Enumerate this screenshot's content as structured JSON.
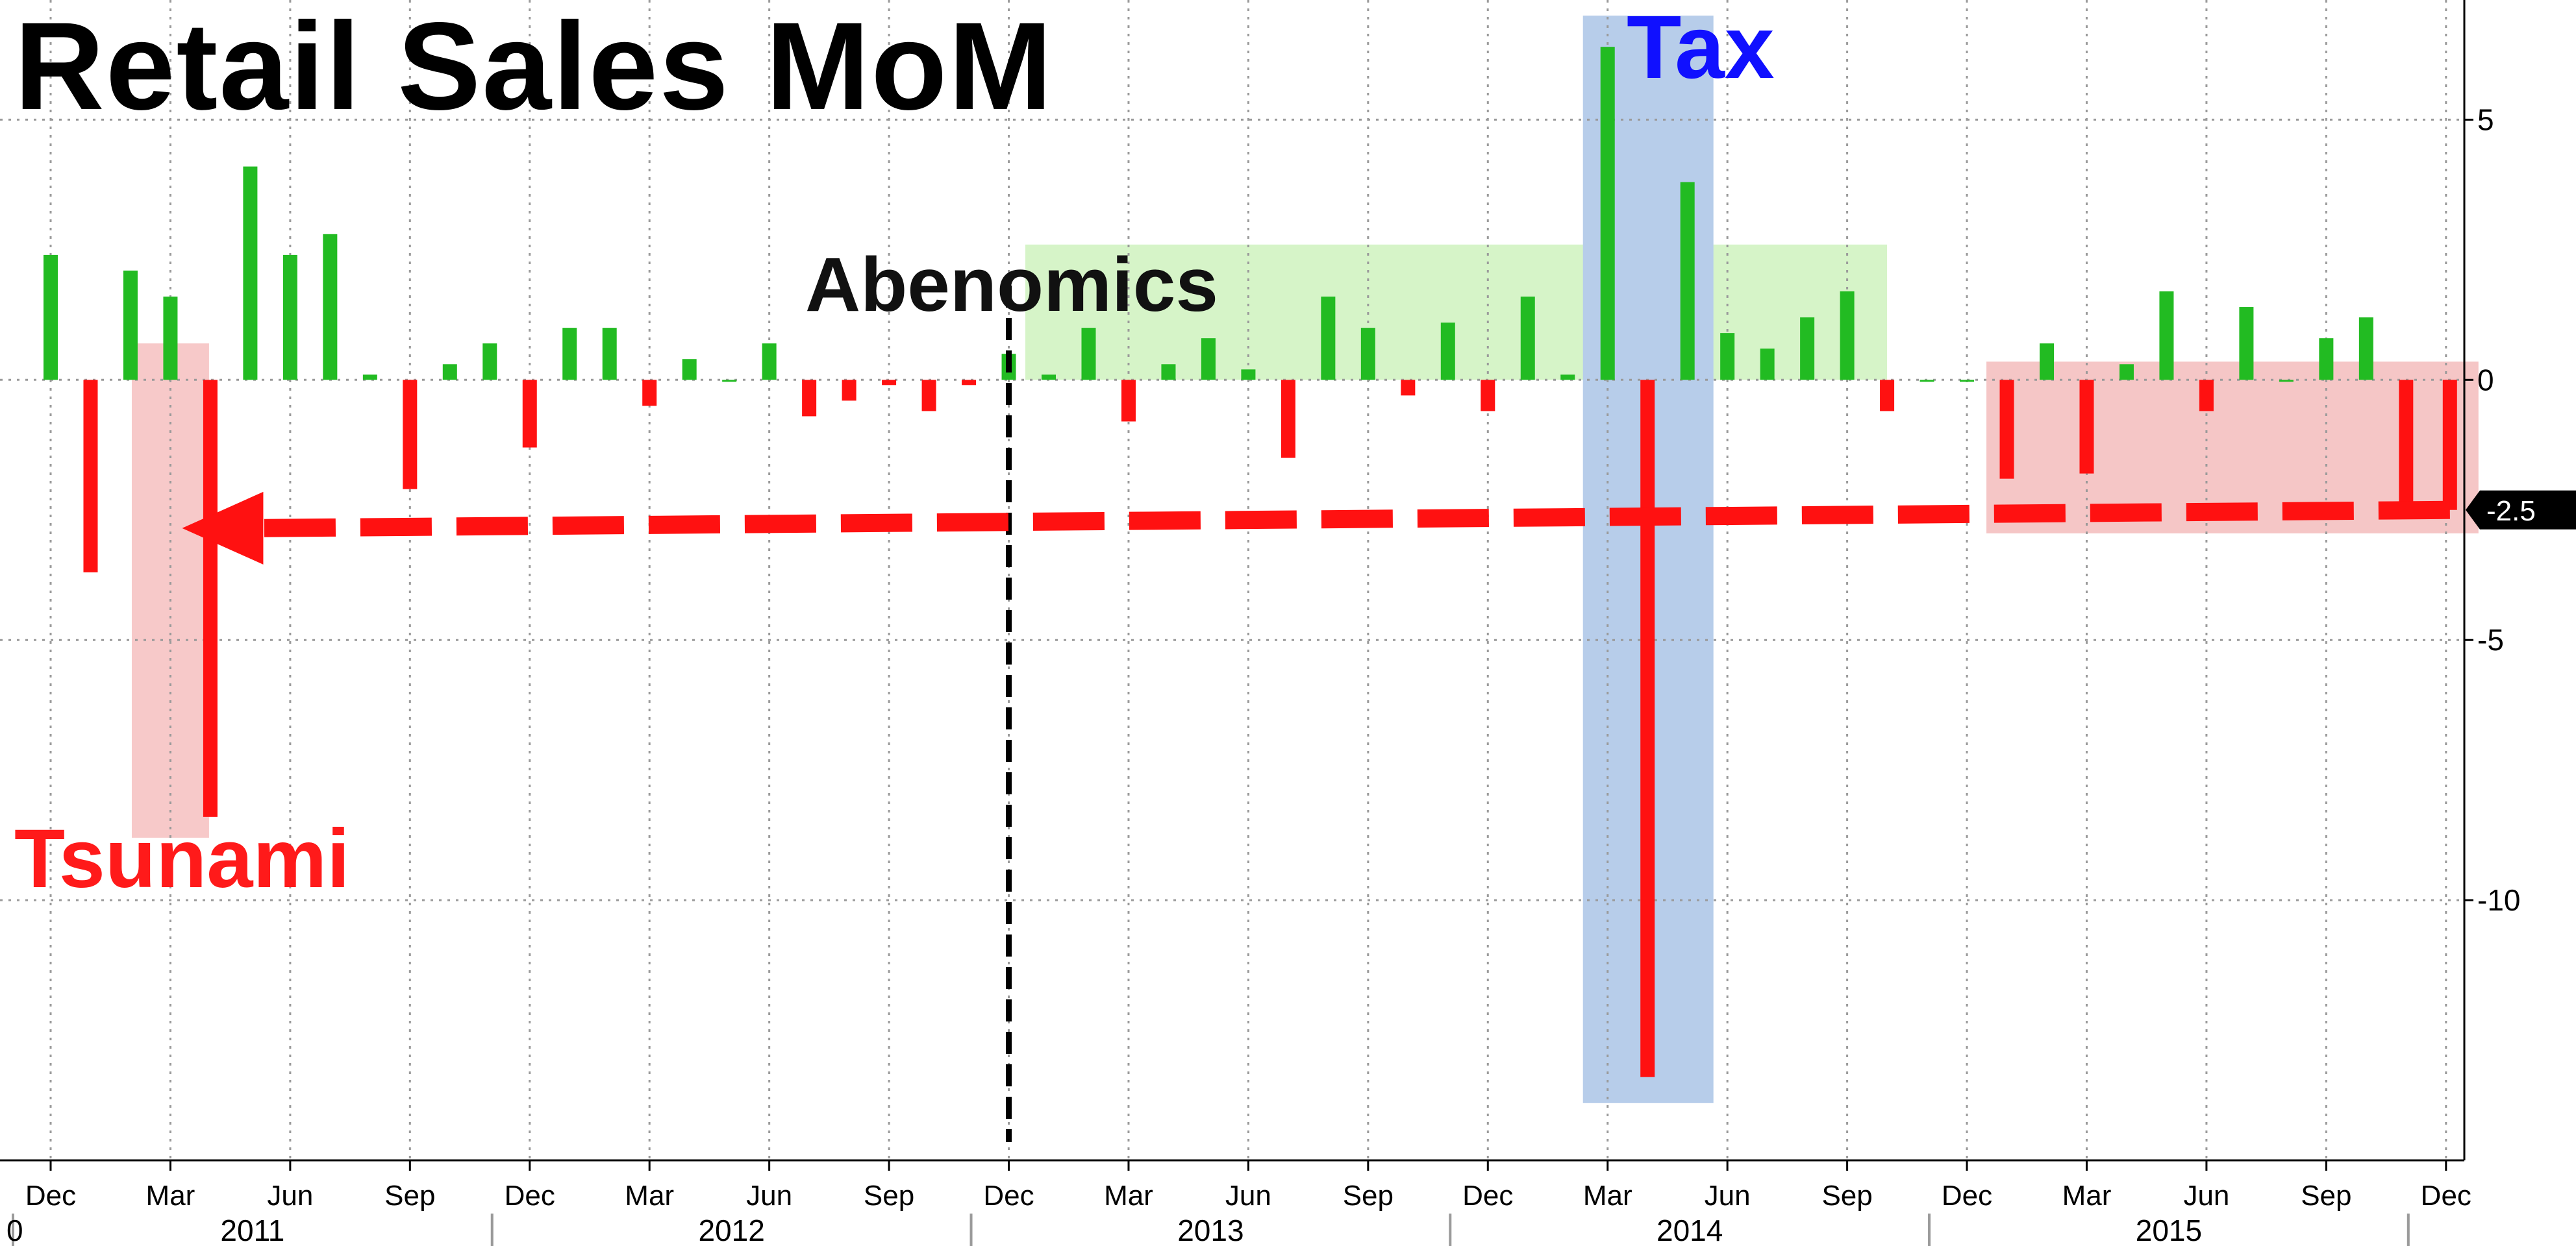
{
  "chart_data": {
    "type": "bar",
    "title": "Retail Sales MoM",
    "x_start": "2010-12",
    "x_end": "2015-12",
    "values": [
      2.4,
      -3.7,
      2.1,
      1.6,
      -8.4,
      4.1,
      2.4,
      2.8,
      0.1,
      -2.1,
      0.3,
      0.7,
      -1.3,
      1.0,
      1.0,
      -0.5,
      0.4,
      0.0,
      0.7,
      -0.7,
      -0.4,
      -0.1,
      -0.6,
      -0.1,
      0.5,
      0.1,
      1.0,
      -0.8,
      0.3,
      0.8,
      0.2,
      -1.5,
      1.6,
      1.0,
      -0.3,
      1.1,
      -0.6,
      1.6,
      0.1,
      6.4,
      -13.4,
      3.8,
      0.9,
      0.6,
      1.2,
      1.7,
      -0.6,
      0.0,
      0.0,
      -1.9,
      0.7,
      -1.8,
      0.3,
      1.7,
      -0.6,
      1.4,
      0.0,
      0.8,
      1.2,
      -2.5
    ],
    "ylim": [
      -15,
      7.3
    ],
    "yticks": [
      5,
      0,
      -5,
      -10
    ],
    "ytick_labels": [
      "5",
      "0",
      "-5",
      "-10"
    ],
    "month_ticks": [
      {
        "date": "2010-12",
        "label": "Dec"
      },
      {
        "date": "2011-03",
        "label": "Mar"
      },
      {
        "date": "2011-06",
        "label": "Jun"
      },
      {
        "date": "2011-09",
        "label": "Sep"
      },
      {
        "date": "2011-12",
        "label": "Dec"
      },
      {
        "date": "2012-03",
        "label": "Mar"
      },
      {
        "date": "2012-06",
        "label": "Jun"
      },
      {
        "date": "2012-09",
        "label": "Sep"
      },
      {
        "date": "2012-12",
        "label": "Dec"
      },
      {
        "date": "2013-03",
        "label": "Mar"
      },
      {
        "date": "2013-06",
        "label": "Jun"
      },
      {
        "date": "2013-09",
        "label": "Sep"
      },
      {
        "date": "2013-12",
        "label": "Dec"
      },
      {
        "date": "2014-03",
        "label": "Mar"
      },
      {
        "date": "2014-06",
        "label": "Jun"
      },
      {
        "date": "2014-09",
        "label": "Sep"
      },
      {
        "date": "2014-12",
        "label": "Dec"
      },
      {
        "date": "2015-03",
        "label": "Mar"
      },
      {
        "date": "2015-06",
        "label": "Jun"
      },
      {
        "date": "2015-09",
        "label": "Sep"
      },
      {
        "date": "2015-12",
        "label": "Dec"
      }
    ],
    "year_labels": [
      "2011",
      "2012",
      "2013",
      "2014",
      "2015"
    ],
    "left_partial_label": "0",
    "last_value_label": "-2.5",
    "grid": true,
    "colors": {
      "positive": "#22bb22",
      "negative": "#ff1111",
      "tax_band": "#b7cdea",
      "abenomics_band": "#d6f4c8",
      "tsunami_band": "#f7c9c9",
      "recent_band": "#f5c6c6",
      "arrow": "#ff1111",
      "divider": "#000000"
    }
  },
  "labels": {
    "title": "Retail Sales MoM",
    "tax": "Tax",
    "abenomics": "Abenomics",
    "tsunami": "Tsunami"
  }
}
